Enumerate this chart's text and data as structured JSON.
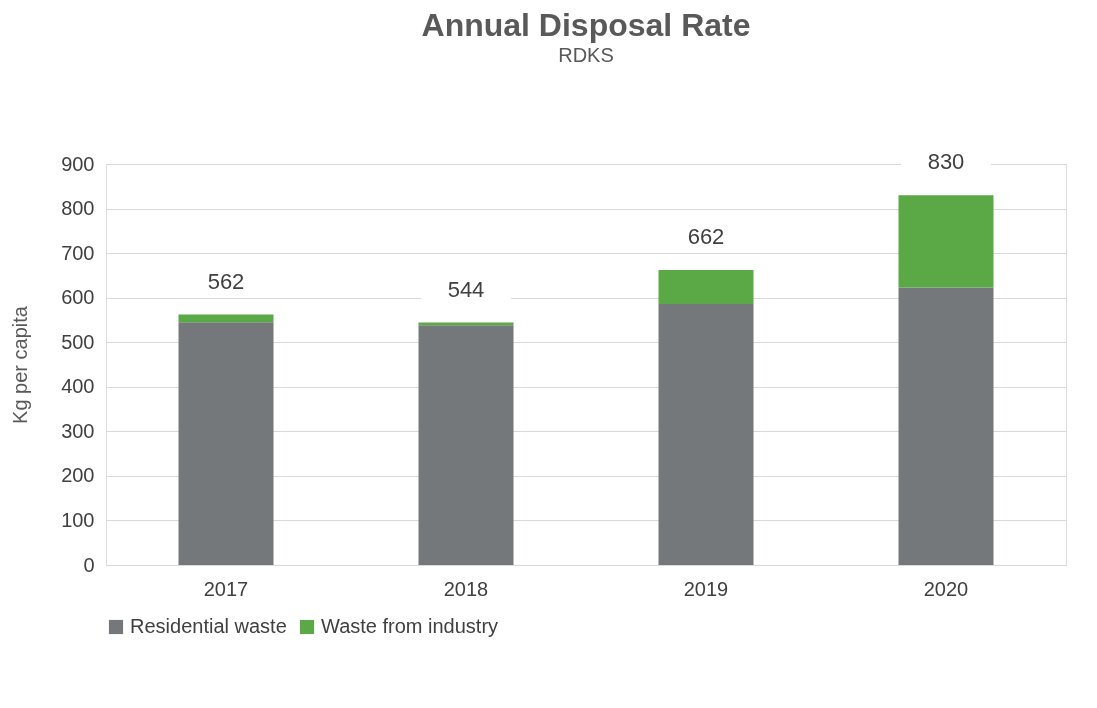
{
  "chart_data": {
    "type": "bar",
    "title": "Annual Disposal Rate",
    "subtitle": "RDKS",
    "ylabel": "Kg per capita",
    "categories": [
      "2017",
      "2018",
      "2019",
      "2020"
    ],
    "stacked": true,
    "series": [
      {
        "name": "Residential waste",
        "color": "#75787b",
        "values": [
          545,
          538,
          586,
          623
        ]
      },
      {
        "name": "Waste from industry",
        "color": "#5aa846",
        "values": [
          17,
          6,
          76,
          207
        ]
      }
    ],
    "totals": [
      "562",
      "544",
      "662",
      "830"
    ],
    "ylim": [
      0,
      900
    ],
    "yticks": [
      0,
      100,
      200,
      300,
      400,
      500,
      600,
      700,
      800,
      900
    ],
    "grid": "y",
    "legend": "bottom"
  }
}
